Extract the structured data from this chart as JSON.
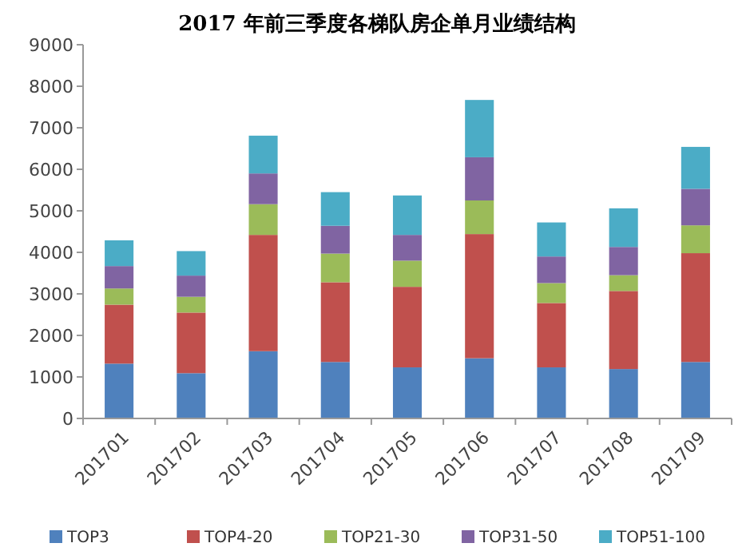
{
  "chart_data": {
    "type": "bar",
    "title": "2017 年前三季度各梯队房企单月业绩结构",
    "stacked": true,
    "legend": "bottom",
    "grid": false,
    "categories": [
      "201701",
      "201702",
      "201703",
      "201704",
      "201705",
      "201706",
      "201707",
      "201708",
      "201709"
    ],
    "ylim": [
      0,
      9000
    ],
    "yticks": [
      0,
      1000,
      2000,
      3000,
      4000,
      5000,
      6000,
      7000,
      8000,
      9000
    ],
    "series": [
      {
        "name": "TOP3",
        "color": "#4f81bd",
        "values": [
          1320,
          1090,
          1620,
          1360,
          1230,
          1450,
          1230,
          1190,
          1360
        ]
      },
      {
        "name": "TOP4-20",
        "color": "#c0504d",
        "values": [
          1420,
          1460,
          2800,
          1920,
          1940,
          2990,
          1550,
          1880,
          2620
        ]
      },
      {
        "name": "TOP21-30",
        "color": "#9bbb59",
        "values": [
          390,
          380,
          740,
          690,
          630,
          810,
          480,
          380,
          670
        ]
      },
      {
        "name": "TOP31-50",
        "color": "#8064a2",
        "values": [
          540,
          510,
          740,
          670,
          620,
          1040,
          640,
          680,
          880
        ]
      },
      {
        "name": "TOP51-100",
        "color": "#4bacc6",
        "values": [
          620,
          590,
          910,
          810,
          950,
          1380,
          820,
          930,
          1010
        ]
      }
    ]
  }
}
